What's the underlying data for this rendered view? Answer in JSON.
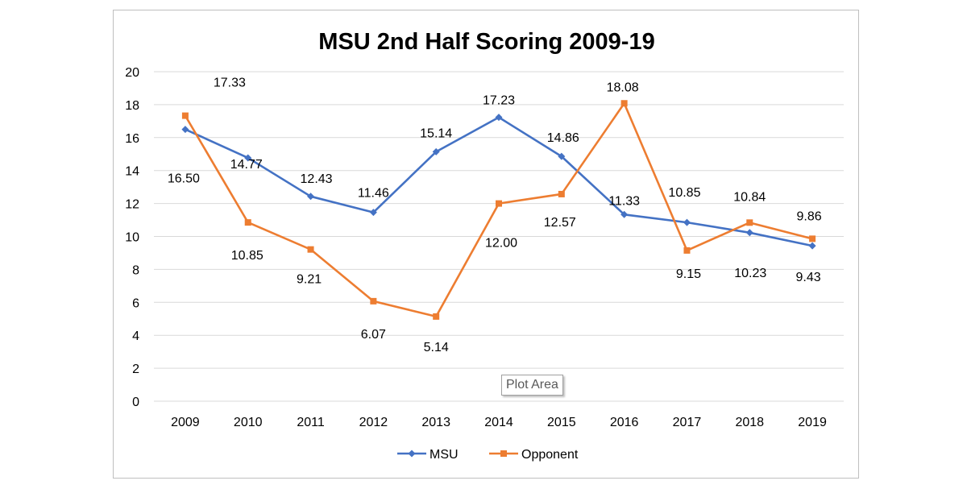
{
  "chart_data": {
    "type": "line",
    "title": "MSU 2nd Half Scoring 2009-19",
    "xlabel": "",
    "ylabel": "",
    "categories": [
      "2009",
      "2010",
      "2011",
      "2012",
      "2013",
      "2014",
      "2015",
      "2016",
      "2017",
      "2018",
      "2019"
    ],
    "ylim": [
      0,
      20
    ],
    "yticks": [
      "0",
      "2",
      "4",
      "6",
      "8",
      "10",
      "12",
      "14",
      "16",
      "18",
      "20"
    ],
    "grid": true,
    "legend_position": "bottom",
    "series": [
      {
        "name": "MSU",
        "color": "#4472C4",
        "marker": "diamond",
        "values": [
          16.5,
          14.77,
          12.43,
          11.46,
          15.14,
          17.23,
          14.86,
          11.33,
          10.85,
          10.23,
          9.43
        ],
        "labels": [
          "16.50",
          "14.77",
          "12.43",
          "11.46",
          "15.14",
          "17.23",
          "14.86",
          "11.33",
          "10.85",
          "10.23",
          "9.43"
        ]
      },
      {
        "name": "Opponent",
        "color": "#ED7D31",
        "marker": "square",
        "values": [
          17.33,
          10.85,
          9.21,
          6.07,
          5.14,
          12.0,
          12.57,
          18.08,
          9.15,
          10.84,
          9.86
        ],
        "labels": [
          "17.33",
          "10.85",
          "9.21",
          "6.07",
          "5.14",
          "12.00",
          "12.57",
          "18.08",
          "9.15",
          "10.84",
          "9.86"
        ]
      }
    ]
  },
  "tooltip": {
    "text": "Plot Area"
  }
}
